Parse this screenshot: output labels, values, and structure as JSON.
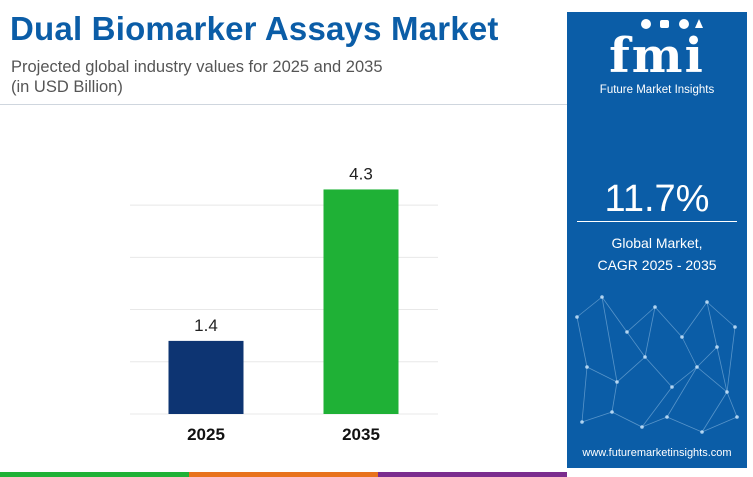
{
  "header": {
    "title": "Dual Biomarker Assays Market",
    "subtitle_line1": "Projected global industry values for 2025 and 2035",
    "subtitle_line2": "(in USD Billion)"
  },
  "chart_data": {
    "type": "bar",
    "title": "Dual Biomarker Assays Market",
    "categories": [
      "2025",
      "2035"
    ],
    "values": [
      1.4,
      4.3
    ],
    "value_labels": [
      "1.4",
      "4.3"
    ],
    "bar_colors": [
      "#0d3472",
      "#1fb136"
    ],
    "xlabel": "",
    "ylabel": "",
    "ylim": [
      0,
      4.5
    ],
    "grid": true,
    "legend": "none"
  },
  "brand": {
    "logo_text": "fmi",
    "tagline": "Future Market Insights",
    "website": "www.futuremarketinsights.com",
    "panel_color": "#0b5da7"
  },
  "stats": {
    "cagr_value": "11.7%",
    "cagr_label_line1": "Global Market,",
    "cagr_label_line2": "CAGR 2025 - 2035"
  },
  "colors": {
    "title": "#0b5da7",
    "bottom_bar": [
      "#1fb136",
      "#e8721c",
      "#7b2c8e"
    ]
  }
}
